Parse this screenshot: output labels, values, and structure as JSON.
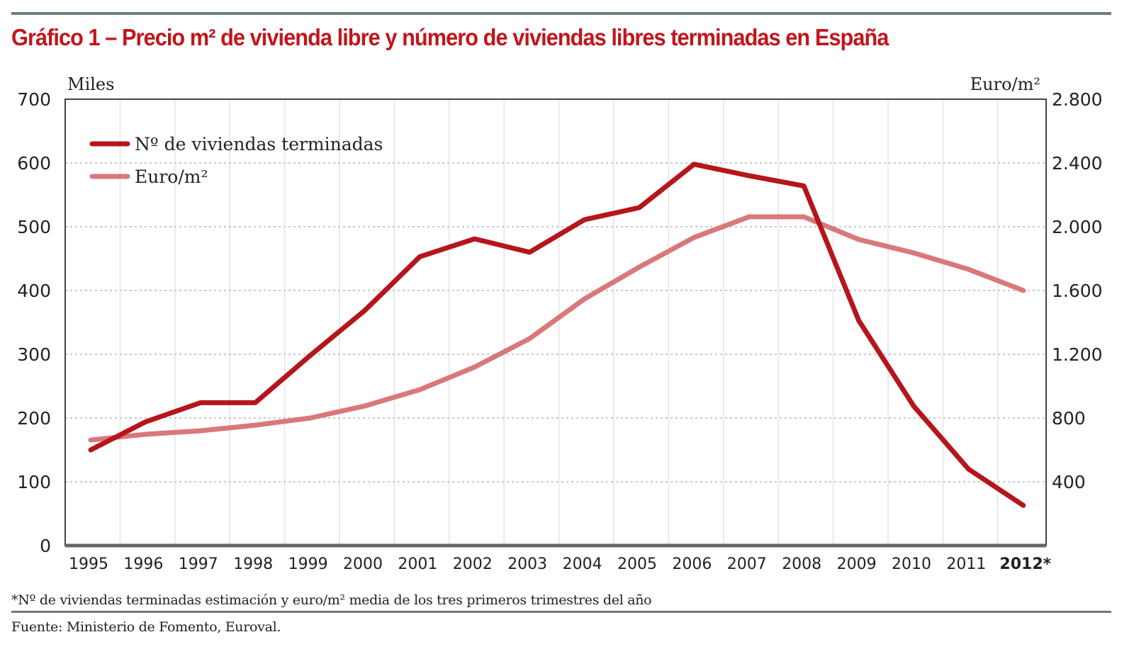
{
  "chart_data": {
    "type": "line",
    "title": "Gráfico 1 – Precio m² de vivienda libre y número de viviendas libres terminadas en España",
    "categories": [
      "1995",
      "1996",
      "1997",
      "1998",
      "1999",
      "2000",
      "2001",
      "2002",
      "2003",
      "2004",
      "2005",
      "2006",
      "2007",
      "2008",
      "2009",
      "2010",
      "2011",
      "2012*"
    ],
    "y_left": {
      "label": "Miles",
      "range": [
        0,
        700
      ],
      "ticks": [
        "0",
        "100",
        "200",
        "300",
        "400",
        "500",
        "600",
        "700"
      ]
    },
    "y_right": {
      "label": "Euro/m²",
      "range": [
        0,
        2800
      ],
      "ticks": [
        "400",
        "800",
        "1.200",
        "1.600",
        "2.000",
        "2.400",
        "2.800"
      ]
    },
    "grid": true,
    "legend_position": "top-left",
    "series": [
      {
        "name": "Nº de viviendas terminadas",
        "axis": "left",
        "color": "#b5161b",
        "values": [
          150,
          194,
          224,
          224,
          298,
          369,
          453,
          481,
          460,
          511,
          530,
          598,
          580,
          564,
          353,
          219,
          120,
          63
        ]
      },
      {
        "name": "Euro/m²",
        "axis": "right",
        "color": "#d9787a",
        "values": [
          662,
          698,
          720,
          755,
          800,
          876,
          978,
          1120,
          1298,
          1547,
          1747,
          1933,
          2062,
          2062,
          1920,
          1836,
          1733,
          1600
        ]
      }
    ]
  },
  "footnote": "*Nº de viviendas terminadas estimación y euro/m² media de los tres primeros trimestres del año",
  "source": "Fuente: Ministerio de Fomento, Euroval."
}
